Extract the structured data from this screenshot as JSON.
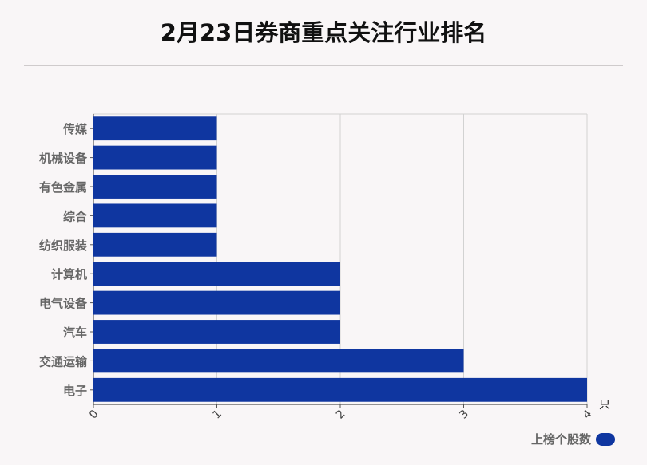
{
  "title": "2月23日券商重点关注行业排名",
  "legend": {
    "label": "上榜个股数",
    "color": "#0f36a0"
  },
  "chart_data": {
    "type": "bar",
    "orientation": "horizontal",
    "categories": [
      "传媒",
      "机械设备",
      "有色金属",
      "综合",
      "纺织服装",
      "计算机",
      "电气设备",
      "汽车",
      "交通运输",
      "电子"
    ],
    "series": [
      {
        "name": "上榜个股数",
        "values": [
          1,
          1,
          1,
          1,
          1,
          2,
          2,
          2,
          3,
          4
        ],
        "color": "#0f36a0"
      }
    ],
    "xlim": [
      0,
      4
    ],
    "xticks": [
      "0",
      "1",
      "2",
      "3",
      "4"
    ],
    "unit": "只",
    "grid": true,
    "legend_position": "bottom-right"
  }
}
